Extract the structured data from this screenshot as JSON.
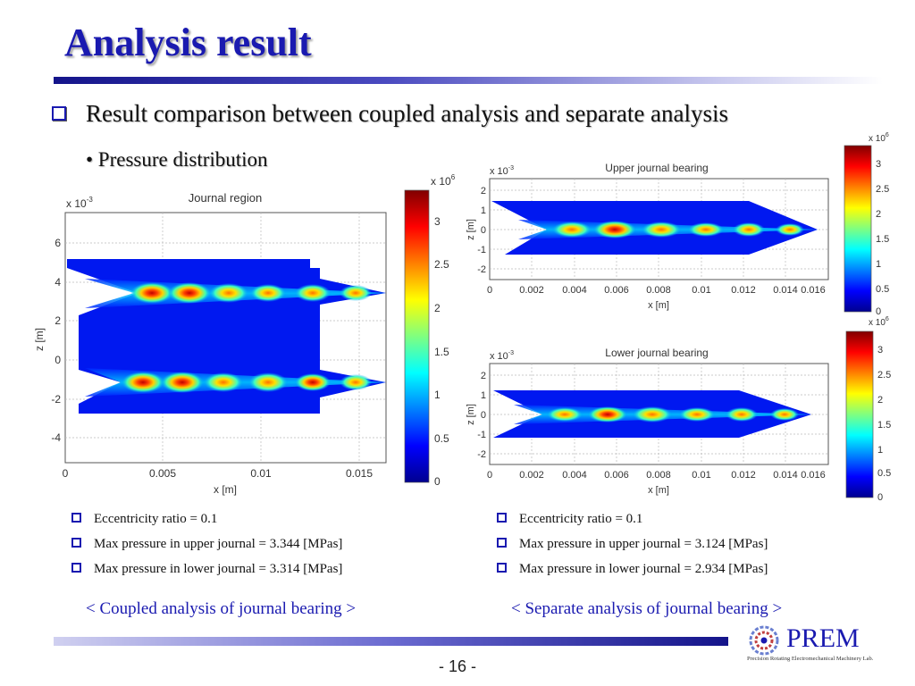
{
  "slide": {
    "title": "Analysis result",
    "bullet_main": "Result comparison between coupled analysis and separate analysis",
    "sub_bullet": "• Pressure distribution",
    "left_info": [
      "Eccentricity ratio = 0.1",
      "Max pressure in upper journal = 3.344 [MPas]",
      "Max pressure in lower journal = 3.314 [MPas]"
    ],
    "right_info": [
      "Eccentricity ratio = 0.1",
      "Max pressure in upper journal = 3.124 [MPas]",
      "Max pressure in lower journal = 2.934 [MPas]"
    ],
    "left_caption": "< Coupled analysis of journal bearing >",
    "right_caption": "< Separate analysis of journal bearing >",
    "page_number": "- 16 -",
    "logo": {
      "word": "PREM",
      "subtitle": "Precision Rotating Electromechanical Machinery Lab."
    }
  },
  "chart_data": [
    {
      "type": "heatmap",
      "title": "Journal region",
      "xlabel": "x [m]",
      "ylabel": "z [m]",
      "y_scale_label": "x 10",
      "y_scale_exp": "-3",
      "xticks": [
        "0",
        "0.005",
        "0.01",
        "0.015"
      ],
      "yticks": [
        "6",
        "4",
        "2",
        "0",
        "-2",
        "-4"
      ],
      "colorbar": {
        "scale_label": "x 10",
        "scale_exp": "6",
        "ticks": [
          "3",
          "2.5",
          "2",
          "1.5",
          "1",
          "0.5",
          "0"
        ]
      }
    },
    {
      "type": "heatmap",
      "title": "Upper journal bearing",
      "xlabel": "x [m]",
      "ylabel": "z [m]",
      "y_scale_label": "x 10",
      "y_scale_exp": "-3",
      "xticks": [
        "0",
        "0.002",
        "0.004",
        "0.006",
        "0.008",
        "0.01",
        "0.012",
        "0.014",
        "0.016"
      ],
      "yticks": [
        "2",
        "1",
        "0",
        "-1",
        "-2"
      ],
      "colorbar": {
        "scale_label": "x 10",
        "scale_exp": "6",
        "ticks": [
          "3",
          "2.5",
          "2",
          "1.5",
          "1",
          "0.5",
          "0"
        ]
      }
    },
    {
      "type": "heatmap",
      "title": "Lower journal bearing",
      "xlabel": "x [m]",
      "ylabel": "z [m]",
      "y_scale_label": "x 10",
      "y_scale_exp": "-3",
      "xticks": [
        "0",
        "0.002",
        "0.004",
        "0.006",
        "0.008",
        "0.01",
        "0.012",
        "0.014",
        "0.016"
      ],
      "yticks": [
        "2",
        "1",
        "0",
        "-1",
        "-2"
      ],
      "colorbar": {
        "scale_label": "x 10",
        "scale_exp": "6",
        "ticks": [
          "3",
          "2.5",
          "2",
          "1.5",
          "1",
          "0.5",
          "0"
        ]
      }
    }
  ]
}
